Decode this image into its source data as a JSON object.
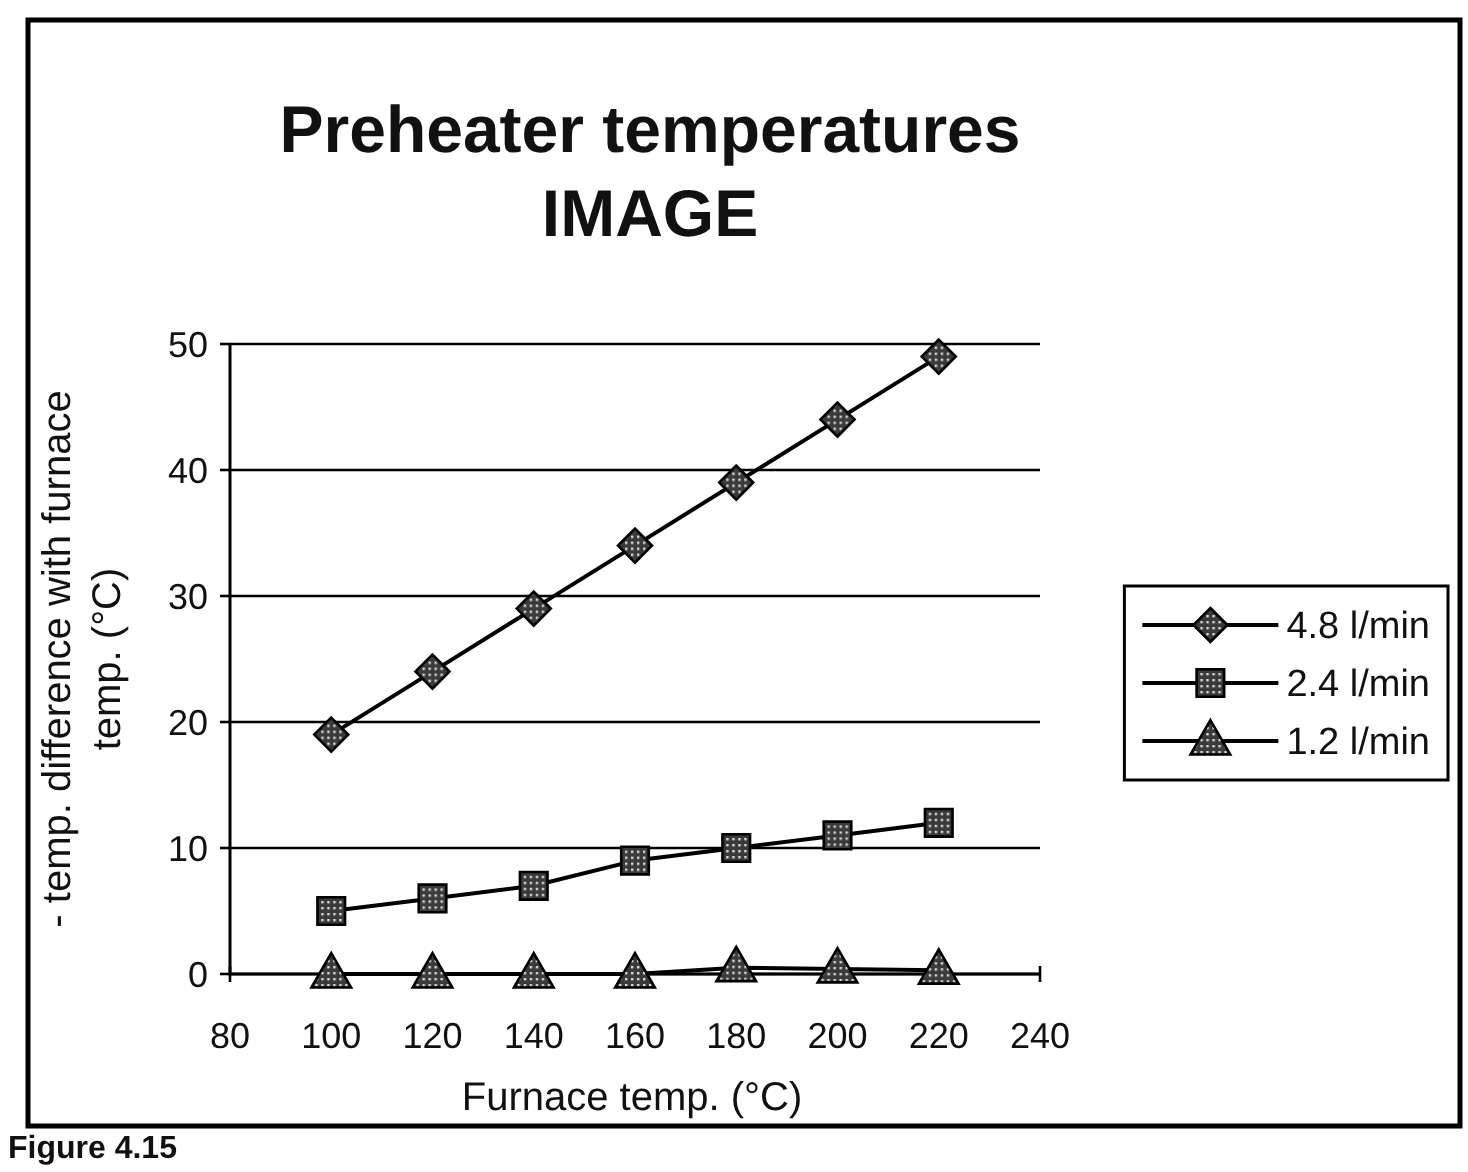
{
  "chart_data": {
    "type": "line",
    "title": "Preheater temperatures IMAGE",
    "xlabel": "Furnace temp. (°C)",
    "ylabel": "- temp. difference with furnace temp. (°C)",
    "x": [
      100,
      120,
      140,
      160,
      180,
      200,
      220
    ],
    "series": [
      {
        "name": "4.8 l/min",
        "color": "#000000",
        "marker": "diamond",
        "values": [
          19,
          24,
          29,
          34,
          39,
          44,
          49
        ]
      },
      {
        "name": "2.4 l/min",
        "color": "#000000",
        "marker": "square",
        "values": [
          5,
          6,
          7,
          9,
          10,
          11,
          12
        ]
      },
      {
        "name": "1.2 l/min",
        "color": "#000000",
        "marker": "triangle",
        "values": [
          0,
          0,
          0,
          0,
          0.5,
          0.4,
          0.3
        ]
      }
    ],
    "xlim": [
      80,
      240
    ],
    "xticks": [
      80,
      100,
      120,
      140,
      160,
      180,
      200,
      220,
      240
    ],
    "ylim": [
      0,
      50
    ],
    "yticks": [
      0,
      10,
      20,
      30,
      40,
      50
    ],
    "grid": "y",
    "legend": "right",
    "line_style": "solid",
    "annotations": [
      "Figure 4.15"
    ]
  }
}
